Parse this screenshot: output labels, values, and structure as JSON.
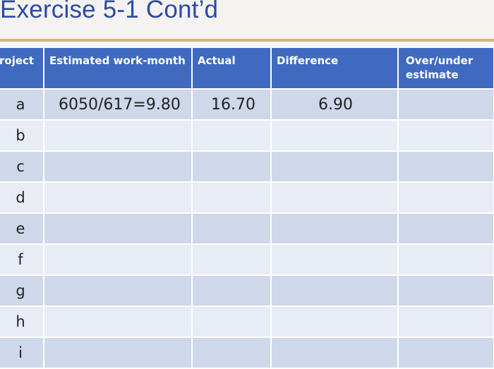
{
  "title": "Exercise 5-1 Cont’d",
  "table": {
    "headers": {
      "project": "roject",
      "estimated": "Estimated work-month",
      "actual": "Actual",
      "difference": "Difference",
      "over_under": "Over/under estimate"
    },
    "rows": [
      {
        "project": "a",
        "estimated": "6050/617=9.80",
        "actual": "16.70",
        "difference": "6.90",
        "over_under": ""
      },
      {
        "project": "b",
        "estimated": "",
        "actual": "",
        "difference": "",
        "over_under": ""
      },
      {
        "project": "c",
        "estimated": "",
        "actual": "",
        "difference": "",
        "over_under": ""
      },
      {
        "project": "d",
        "estimated": "",
        "actual": "",
        "difference": "",
        "over_under": ""
      },
      {
        "project": "e",
        "estimated": "",
        "actual": "",
        "difference": "",
        "over_under": ""
      },
      {
        "project": "f",
        "estimated": "",
        "actual": "",
        "difference": "",
        "over_under": ""
      },
      {
        "project": "g",
        "estimated": "",
        "actual": "",
        "difference": "",
        "over_under": ""
      },
      {
        "project": "h",
        "estimated": "",
        "actual": "",
        "difference": "",
        "over_under": ""
      },
      {
        "project": "i",
        "estimated": "",
        "actual": "",
        "difference": "",
        "over_under": ""
      }
    ]
  },
  "colors": {
    "title": "#2b4aa6",
    "header_fill": "#3f6ac0",
    "row_dark": "#cfd7ea",
    "row_light": "#e8ecf5",
    "rule": "#d8b37a"
  }
}
